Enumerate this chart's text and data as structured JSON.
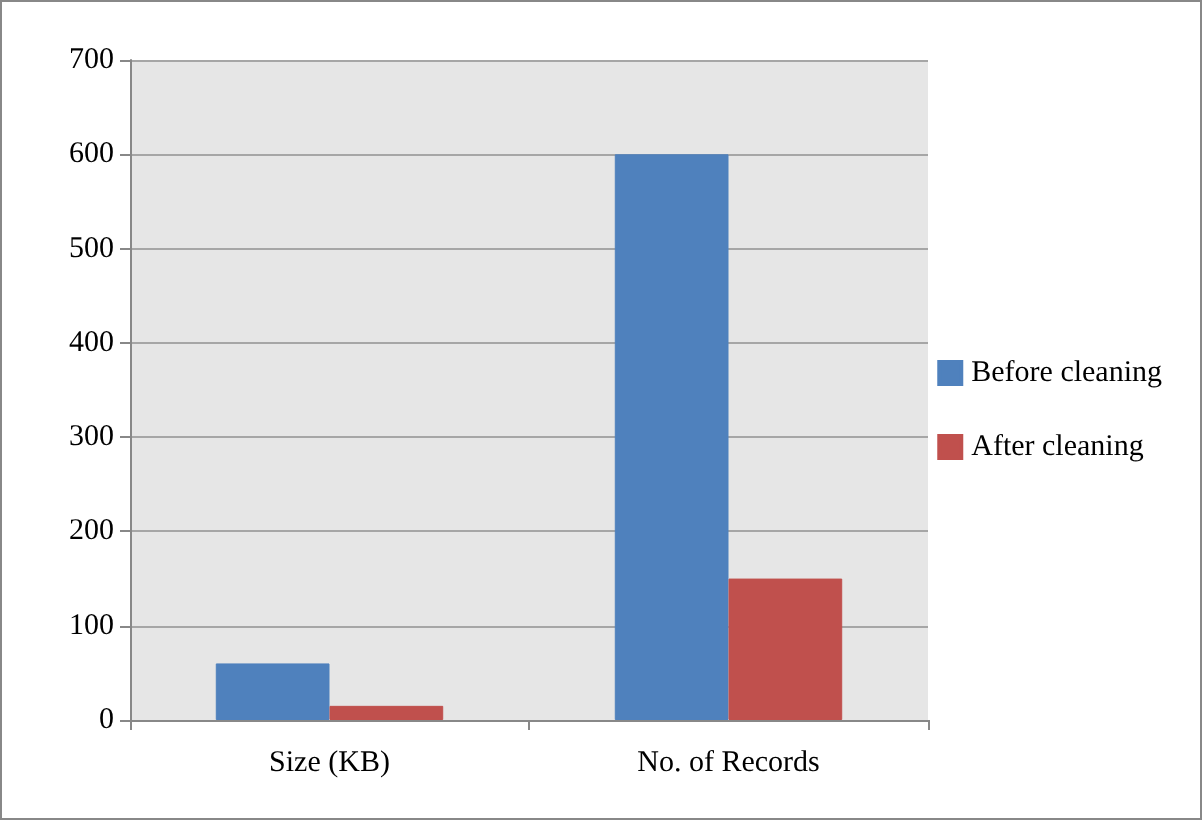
{
  "chart_data": {
    "type": "bar",
    "categories": [
      "Size (KB)",
      "No. of Records"
    ],
    "series": [
      {
        "name": "Before cleaning",
        "color": "#4f81bd",
        "values": [
          60,
          600
        ]
      },
      {
        "name": "After cleaning",
        "color": "#c0504d",
        "values": [
          15,
          150
        ]
      }
    ],
    "ylim": [
      0,
      700
    ],
    "yticks": [
      0,
      100,
      200,
      300,
      400,
      500,
      600,
      700
    ],
    "grid": "y",
    "legend": "right"
  }
}
